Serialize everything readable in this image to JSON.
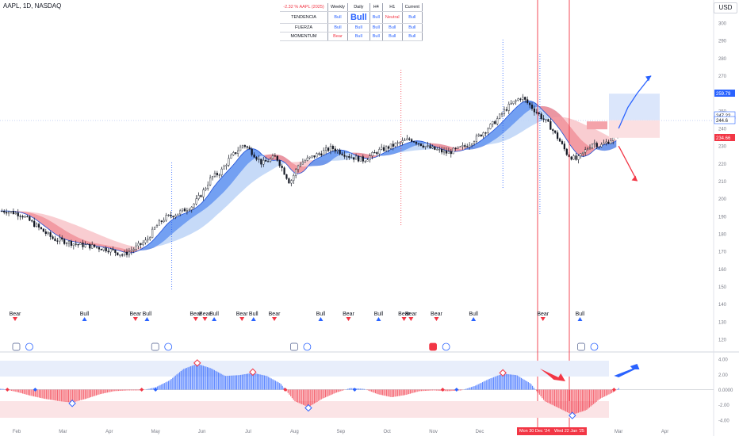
{
  "header": {
    "symbol": "AAPL, 1D, NASDAQ",
    "currency": "USD"
  },
  "table": {
    "title": "-2.32 % AAPL (2025)",
    "columns": [
      "Weekly",
      "Daily",
      "H4",
      "H1",
      "Current"
    ],
    "rows": [
      {
        "label": "TENDENCIA",
        "cells": [
          "Bull",
          "Bull",
          "Bull",
          "Neutral",
          "Bull"
        ]
      },
      {
        "label": "FUERZA",
        "cells": [
          "Bull",
          "Bull",
          "Bull",
          "Bull",
          "Bull"
        ]
      },
      {
        "label": "MOMENTUM",
        "cells": [
          "Bear",
          "Bull",
          "Bull",
          "Bull",
          "Bull"
        ]
      }
    ],
    "colors": {
      "bull": "#2962ff",
      "bear": "#f23645"
    }
  },
  "chart_data": [
    {
      "type": "candlestick",
      "title": "",
      "y_axis_labels": [
        300,
        290,
        280,
        270,
        260,
        250,
        240,
        230,
        220,
        210,
        200,
        190,
        180,
        170,
        160,
        150,
        140,
        130,
        120
      ],
      "ylim": [
        117,
        307
      ],
      "x_tick_labels": [
        "Feb",
        "Mar",
        "Apr",
        "May",
        "Jun",
        "Jul",
        "Aug",
        "Sep",
        "Oct",
        "Nov",
        "Dec",
        "Feb",
        "Mar",
        "Apr"
      ],
      "x_tick_months": [
        0,
        1,
        2,
        3,
        4,
        5,
        6,
        7,
        8,
        9,
        10,
        12,
        13,
        14
      ],
      "close_path": [
        [
          -0.2,
          193
        ],
        [
          0.1,
          191
        ],
        [
          0.3,
          187
        ],
        [
          0.55,
          182
        ],
        [
          0.8,
          177
        ],
        [
          1.0,
          176
        ],
        [
          1.3,
          174
        ],
        [
          1.6,
          173
        ],
        [
          2.0,
          171
        ],
        [
          2.3,
          168
        ],
        [
          2.5,
          171
        ],
        [
          2.8,
          176
        ],
        [
          3.0,
          184
        ],
        [
          3.2,
          189
        ],
        [
          3.5,
          192
        ],
        [
          3.8,
          196
        ],
        [
          4.0,
          203
        ],
        [
          4.2,
          212
        ],
        [
          4.4,
          215
        ],
        [
          4.6,
          223
        ],
        [
          4.9,
          231
        ],
        [
          5.1,
          226
        ],
        [
          5.3,
          220
        ],
        [
          5.6,
          224
        ],
        [
          5.9,
          209
        ],
        [
          6.1,
          220
        ],
        [
          6.4,
          224
        ],
        [
          6.8,
          229
        ],
        [
          7.2,
          224
        ],
        [
          7.5,
          222
        ],
        [
          7.8,
          227
        ],
        [
          8.2,
          231
        ],
        [
          8.5,
          234
        ],
        [
          8.9,
          229
        ],
        [
          9.3,
          226
        ],
        [
          9.7,
          230
        ],
        [
          10.0,
          236
        ],
        [
          10.3,
          243
        ],
        [
          10.6,
          252
        ],
        [
          10.9,
          258
        ],
        [
          11.2,
          250
        ],
        [
          11.5,
          242
        ],
        [
          11.7,
          234
        ],
        [
          11.9,
          225
        ],
        [
          12.1,
          222
        ],
        [
          12.3,
          228
        ],
        [
          12.45,
          232
        ],
        [
          12.6,
          230
        ],
        [
          12.8,
          233
        ],
        [
          13.0,
          238
        ]
      ],
      "annotations": {
        "labels": [
          "Bear",
          "Bear",
          "Bull",
          "Bull",
          "Bull"
        ],
        "current_price_badges": [
          259.79,
          247.22,
          244.6,
          234.66
        ]
      },
      "forecast_paths": {
        "bull": [
          [
            13.0,
            240
          ],
          [
            13.2,
            252
          ],
          [
            13.4,
            260
          ],
          [
            13.7,
            270
          ]
        ],
        "bear": [
          [
            13.0,
            230
          ],
          [
            13.2,
            220
          ],
          [
            13.4,
            210
          ]
        ]
      },
      "date_badges": [
        "Mon 30 Dec '24",
        "Wed 22 Jan '25"
      ]
    },
    {
      "type": "histogram",
      "title": "",
      "y_axis_labels": [
        "4.00",
        "2.00",
        "0.0000",
        "-2.00",
        "-4.00"
      ],
      "ylim": [
        -4.6,
        4.6
      ],
      "values": [
        [
          -0.3,
          0.1
        ],
        [
          0.0,
          -0.3
        ],
        [
          0.3,
          -0.8
        ],
        [
          0.6,
          -1.2
        ],
        [
          0.9,
          -1.5
        ],
        [
          1.2,
          -1.7
        ],
        [
          1.5,
          -1.2
        ],
        [
          1.8,
          -0.6
        ],
        [
          2.1,
          -0.2
        ],
        [
          2.4,
          -0.1
        ],
        [
          2.7,
          -0.1
        ],
        [
          3.0,
          0.3
        ],
        [
          3.3,
          1.2
        ],
        [
          3.6,
          2.7
        ],
        [
          3.9,
          3.4
        ],
        [
          4.2,
          2.8
        ],
        [
          4.5,
          1.8
        ],
        [
          4.8,
          1.9
        ],
        [
          5.1,
          2.2
        ],
        [
          5.4,
          1.8
        ],
        [
          5.7,
          0.8
        ],
        [
          6.0,
          -1.5
        ],
        [
          6.3,
          -2.3
        ],
        [
          6.6,
          -1.2
        ],
        [
          6.9,
          -0.4
        ],
        [
          7.2,
          0.2
        ],
        [
          7.5,
          0.1
        ],
        [
          7.8,
          -0.6
        ],
        [
          8.1,
          -1.0
        ],
        [
          8.4,
          -0.7
        ],
        [
          8.7,
          -0.2
        ],
        [
          9.0,
          -0.1
        ],
        [
          9.3,
          -0.2
        ],
        [
          9.6,
          -0.1
        ],
        [
          9.9,
          0.5
        ],
        [
          10.2,
          1.4
        ],
        [
          10.5,
          2.1
        ],
        [
          10.8,
          1.9
        ],
        [
          11.1,
          0.8
        ],
        [
          11.4,
          -1.5
        ],
        [
          11.7,
          -2.4
        ],
        [
          12.0,
          -3.3
        ],
        [
          12.3,
          -2.7
        ],
        [
          12.6,
          -1.2
        ],
        [
          12.9,
          -0.3
        ],
        [
          13.0,
          0.2
        ]
      ]
    }
  ]
}
